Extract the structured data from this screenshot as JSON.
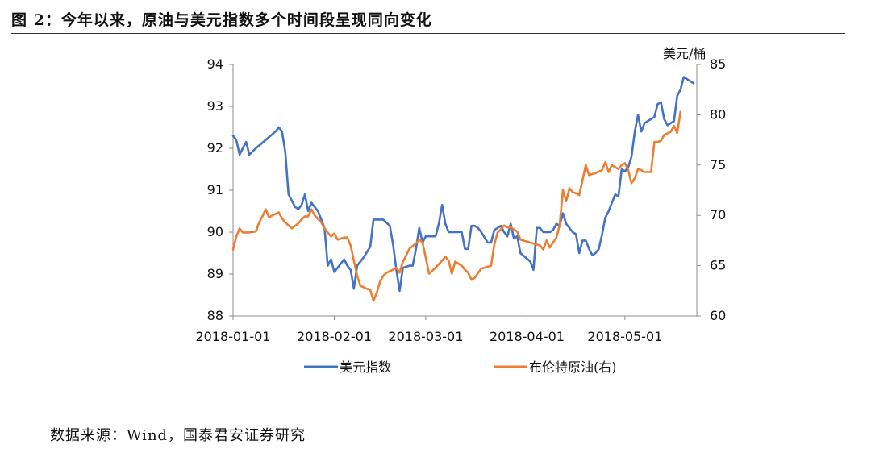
{
  "figure": {
    "title": "图 2：今年以来，原油与美元指数多个时间段呈现同向变化",
    "source": "数据来源：Wind，国泰君安证券研究"
  },
  "chart_data": {
    "type": "line",
    "x_range": [
      "2018-01-01",
      "2018-05-23"
    ],
    "x_ticks": [
      "2018-01-01",
      "2018-02-01",
      "2018-03-01",
      "2018-04-01",
      "2018-05-01"
    ],
    "y_left": {
      "min": 88,
      "max": 94,
      "ticks": [
        88,
        89,
        90,
        91,
        92,
        93,
        94
      ]
    },
    "y_right": {
      "min": 60,
      "max": 85,
      "ticks": [
        60,
        65,
        70,
        75,
        80,
        85
      ],
      "unit": "美元/桶"
    },
    "grid": false,
    "legend_position": "bottom",
    "series": [
      {
        "name": "美元指数",
        "axis": "left",
        "color": "#4472C4",
        "points": [
          [
            "2018-01-01",
            92.3
          ],
          [
            "2018-01-02",
            92.2
          ],
          [
            "2018-01-03",
            91.85
          ],
          [
            "2018-01-04",
            92.0
          ],
          [
            "2018-01-05",
            92.15
          ],
          [
            "2018-01-06",
            91.85
          ],
          [
            "2018-01-08",
            92.0
          ],
          [
            "2018-01-11",
            92.2
          ],
          [
            "2018-01-14",
            92.4
          ],
          [
            "2018-01-15",
            92.5
          ],
          [
            "2018-01-16",
            92.4
          ],
          [
            "2018-01-17",
            91.9
          ],
          [
            "2018-01-18",
            90.9
          ],
          [
            "2018-01-19",
            90.75
          ],
          [
            "2018-01-20",
            90.6
          ],
          [
            "2018-01-21",
            90.55
          ],
          [
            "2018-01-22",
            90.65
          ],
          [
            "2018-01-23",
            90.9
          ],
          [
            "2018-01-24",
            90.5
          ],
          [
            "2018-01-25",
            90.7
          ],
          [
            "2018-01-26",
            90.6
          ],
          [
            "2018-01-27",
            90.5
          ],
          [
            "2018-01-29",
            90.1
          ],
          [
            "2018-01-30",
            89.2
          ],
          [
            "2018-01-31",
            89.35
          ],
          [
            "2018-02-01",
            89.05
          ],
          [
            "2018-02-02",
            89.15
          ],
          [
            "2018-02-04",
            89.35
          ],
          [
            "2018-02-05",
            89.2
          ],
          [
            "2018-02-06",
            89.1
          ],
          [
            "2018-02-07",
            88.65
          ],
          [
            "2018-02-08",
            89.2
          ],
          [
            "2018-02-10",
            89.4
          ],
          [
            "2018-02-12",
            89.65
          ],
          [
            "2018-02-13",
            90.3
          ],
          [
            "2018-02-15",
            90.3
          ],
          [
            "2018-02-16",
            90.3
          ],
          [
            "2018-02-18",
            90.15
          ],
          [
            "2018-02-19",
            89.7
          ],
          [
            "2018-02-20",
            89.1
          ],
          [
            "2018-02-21",
            88.6
          ],
          [
            "2018-02-22",
            89.15
          ],
          [
            "2018-02-24",
            89.2
          ],
          [
            "2018-02-25",
            89.2
          ],
          [
            "2018-02-26",
            89.6
          ],
          [
            "2018-02-27",
            90.1
          ],
          [
            "2018-02-28",
            89.75
          ],
          [
            "2018-03-01",
            89.9
          ],
          [
            "2018-03-02",
            89.9
          ],
          [
            "2018-03-04",
            89.9
          ],
          [
            "2018-03-05",
            90.2
          ],
          [
            "2018-03-06",
            90.65
          ],
          [
            "2018-03-07",
            90.2
          ],
          [
            "2018-03-08",
            90.0
          ],
          [
            "2018-03-09",
            90.0
          ],
          [
            "2018-03-12",
            90.0
          ],
          [
            "2018-03-13",
            89.6
          ],
          [
            "2018-03-14",
            89.6
          ],
          [
            "2018-03-15",
            90.15
          ],
          [
            "2018-03-16",
            90.15
          ],
          [
            "2018-03-17",
            90.1
          ],
          [
            "2018-03-18",
            90.0
          ],
          [
            "2018-03-20",
            89.75
          ],
          [
            "2018-03-21",
            89.75
          ],
          [
            "2018-03-22",
            90.05
          ],
          [
            "2018-03-23",
            90.1
          ],
          [
            "2018-03-24",
            90.15
          ],
          [
            "2018-03-25",
            90.0
          ],
          [
            "2018-03-26",
            89.9
          ],
          [
            "2018-03-27",
            90.2
          ],
          [
            "2018-03-28",
            89.85
          ],
          [
            "2018-03-29",
            89.9
          ],
          [
            "2018-03-30",
            89.5
          ],
          [
            "2018-04-02",
            89.3
          ],
          [
            "2018-04-03",
            89.1
          ],
          [
            "2018-04-04",
            90.1
          ],
          [
            "2018-04-05",
            90.1
          ],
          [
            "2018-04-06",
            90.0
          ],
          [
            "2018-04-08",
            90.0
          ],
          [
            "2018-04-09",
            90.05
          ],
          [
            "2018-04-10",
            90.2
          ],
          [
            "2018-04-11",
            90.15
          ],
          [
            "2018-04-12",
            90.45
          ],
          [
            "2018-04-13",
            90.2
          ],
          [
            "2018-04-15",
            90.0
          ],
          [
            "2018-04-16",
            89.95
          ],
          [
            "2018-04-17",
            89.5
          ],
          [
            "2018-04-18",
            89.8
          ],
          [
            "2018-04-19",
            89.8
          ],
          [
            "2018-04-20",
            89.6
          ],
          [
            "2018-04-21",
            89.45
          ],
          [
            "2018-04-22",
            89.5
          ],
          [
            "2018-04-23",
            89.6
          ],
          [
            "2018-04-24",
            89.95
          ],
          [
            "2018-04-25",
            90.35
          ],
          [
            "2018-04-26",
            90.5
          ],
          [
            "2018-04-28",
            90.9
          ],
          [
            "2018-04-29",
            90.85
          ],
          [
            "2018-04-30",
            91.5
          ],
          [
            "2018-05-01",
            91.45
          ],
          [
            "2018-05-02",
            91.55
          ],
          [
            "2018-05-03",
            91.8
          ],
          [
            "2018-05-04",
            92.4
          ],
          [
            "2018-05-05",
            92.8
          ],
          [
            "2018-05-06",
            92.4
          ],
          [
            "2018-05-07",
            92.6
          ],
          [
            "2018-05-09",
            92.7
          ],
          [
            "2018-05-10",
            92.75
          ],
          [
            "2018-05-11",
            93.05
          ],
          [
            "2018-05-12",
            93.1
          ],
          [
            "2018-05-13",
            92.7
          ],
          [
            "2018-05-14",
            92.55
          ],
          [
            "2018-05-16",
            92.65
          ],
          [
            "2018-05-17",
            93.25
          ],
          [
            "2018-05-18",
            93.4
          ],
          [
            "2018-05-19",
            93.7
          ],
          [
            "2018-05-20",
            93.65
          ],
          [
            "2018-05-22",
            93.55
          ]
        ]
      },
      {
        "name": "布伦特原油(右)",
        "axis": "right",
        "color": "#ED7D31",
        "points": [
          [
            "2018-01-01",
            66.6
          ],
          [
            "2018-01-02",
            67.9
          ],
          [
            "2018-01-03",
            68.7
          ],
          [
            "2018-01-04",
            68.3
          ],
          [
            "2018-01-06",
            68.3
          ],
          [
            "2018-01-08",
            68.4
          ],
          [
            "2018-01-09",
            69.3
          ],
          [
            "2018-01-10",
            69.9
          ],
          [
            "2018-01-11",
            70.6
          ],
          [
            "2018-01-12",
            69.8
          ],
          [
            "2018-01-13",
            70.0
          ],
          [
            "2018-01-15",
            70.3
          ],
          [
            "2018-01-16",
            69.7
          ],
          [
            "2018-01-17",
            69.3
          ],
          [
            "2018-01-18",
            69.0
          ],
          [
            "2018-01-19",
            68.7
          ],
          [
            "2018-01-21",
            69.2
          ],
          [
            "2018-01-22",
            69.6
          ],
          [
            "2018-01-23",
            69.9
          ],
          [
            "2018-01-24",
            69.9
          ],
          [
            "2018-01-25",
            70.6
          ],
          [
            "2018-01-26",
            70.0
          ],
          [
            "2018-01-28",
            69.3
          ],
          [
            "2018-01-29",
            68.7
          ],
          [
            "2018-01-30",
            68.3
          ],
          [
            "2018-01-31",
            67.9
          ],
          [
            "2018-02-01",
            68.2
          ],
          [
            "2018-02-02",
            67.6
          ],
          [
            "2018-02-04",
            67.8
          ],
          [
            "2018-02-05",
            67.8
          ],
          [
            "2018-02-06",
            67.0
          ],
          [
            "2018-02-07",
            65.5
          ],
          [
            "2018-02-08",
            64.0
          ],
          [
            "2018-02-09",
            63.0
          ],
          [
            "2018-02-11",
            62.7
          ],
          [
            "2018-02-12",
            62.6
          ],
          [
            "2018-02-13",
            61.5
          ],
          [
            "2018-02-14",
            62.3
          ],
          [
            "2018-02-15",
            63.4
          ],
          [
            "2018-02-16",
            64.0
          ],
          [
            "2018-02-17",
            64.3
          ],
          [
            "2018-02-19",
            64.6
          ],
          [
            "2018-02-20",
            64.8
          ],
          [
            "2018-02-21",
            64.3
          ],
          [
            "2018-02-22",
            65.4
          ],
          [
            "2018-02-23",
            66.0
          ],
          [
            "2018-02-24",
            66.7
          ],
          [
            "2018-02-26",
            67.2
          ],
          [
            "2018-02-27",
            67.6
          ],
          [
            "2018-02-28",
            67.3
          ],
          [
            "2018-03-01",
            65.8
          ],
          [
            "2018-03-02",
            64.2
          ],
          [
            "2018-03-04",
            64.8
          ],
          [
            "2018-03-06",
            65.5
          ],
          [
            "2018-03-07",
            65.9
          ],
          [
            "2018-03-08",
            65.5
          ],
          [
            "2018-03-09",
            64.2
          ],
          [
            "2018-03-10",
            65.4
          ],
          [
            "2018-03-12",
            65.0
          ],
          [
            "2018-03-13",
            64.6
          ],
          [
            "2018-03-14",
            64.3
          ],
          [
            "2018-03-15",
            63.6
          ],
          [
            "2018-03-16",
            63.8
          ],
          [
            "2018-03-18",
            64.7
          ],
          [
            "2018-03-19",
            64.8
          ],
          [
            "2018-03-21",
            65.0
          ],
          [
            "2018-03-22",
            67.1
          ],
          [
            "2018-03-23",
            68.3
          ],
          [
            "2018-03-24",
            68.6
          ],
          [
            "2018-03-25",
            69.0
          ],
          [
            "2018-03-26",
            68.8
          ],
          [
            "2018-03-27",
            68.8
          ],
          [
            "2018-03-28",
            68.6
          ],
          [
            "2018-03-29",
            68.4
          ],
          [
            "2018-03-30",
            67.6
          ],
          [
            "2018-04-01",
            67.4
          ],
          [
            "2018-04-02",
            67.3
          ],
          [
            "2018-04-03",
            67.2
          ],
          [
            "2018-04-04",
            67.1
          ],
          [
            "2018-04-05",
            67.0
          ],
          [
            "2018-04-06",
            66.6
          ],
          [
            "2018-04-07",
            67.5
          ],
          [
            "2018-04-08",
            66.8
          ],
          [
            "2018-04-09",
            67.3
          ],
          [
            "2018-04-10",
            67.8
          ],
          [
            "2018-04-11",
            69.0
          ],
          [
            "2018-04-12",
            72.5
          ],
          [
            "2018-04-13",
            71.4
          ],
          [
            "2018-04-14",
            72.7
          ],
          [
            "2018-04-15",
            72.3
          ],
          [
            "2018-04-16",
            72.2
          ],
          [
            "2018-04-17",
            72.0
          ],
          [
            "2018-04-18",
            73.5
          ],
          [
            "2018-04-19",
            75.0
          ],
          [
            "2018-04-20",
            74.0
          ],
          [
            "2018-04-21",
            74.1
          ],
          [
            "2018-04-22",
            74.2
          ],
          [
            "2018-04-24",
            74.5
          ],
          [
            "2018-04-25",
            75.3
          ],
          [
            "2018-04-26",
            74.3
          ],
          [
            "2018-04-27",
            75.0
          ],
          [
            "2018-04-29",
            74.6
          ],
          [
            "2018-04-30",
            75.0
          ],
          [
            "2018-05-01",
            75.2
          ],
          [
            "2018-05-02",
            74.5
          ],
          [
            "2018-05-03",
            73.2
          ],
          [
            "2018-05-04",
            73.7
          ],
          [
            "2018-05-05",
            74.6
          ],
          [
            "2018-05-06",
            74.5
          ],
          [
            "2018-05-07",
            74.3
          ],
          [
            "2018-05-09",
            74.3
          ],
          [
            "2018-05-10",
            77.3
          ],
          [
            "2018-05-11",
            77.3
          ],
          [
            "2018-05-12",
            77.4
          ],
          [
            "2018-05-13",
            78.0
          ],
          [
            "2018-05-15",
            78.3
          ],
          [
            "2018-05-16",
            78.9
          ],
          [
            "2018-05-17",
            78.2
          ],
          [
            "2018-05-18",
            80.3
          ]
        ]
      }
    ]
  }
}
